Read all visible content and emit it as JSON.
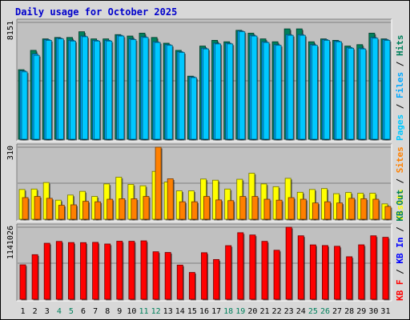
{
  "title": "Daily usage for October 2025",
  "colors": {
    "frame": "#d8d8d8",
    "panel": "#c0c0c0",
    "title": "#0000cc",
    "hits": "#00805c",
    "files": "#00a8ff",
    "pages": "#00c8ff",
    "visits": "#ffff00",
    "sites": "#ff8000",
    "kbytes": "#ff0000",
    "kb_in": "#0000ff",
    "kb_out": "#00805c",
    "weekday_label": "#000000",
    "weekend_label": "#00805c"
  },
  "chart_data": {
    "type": "bar",
    "title": "Daily usage for October 2025",
    "x": [
      "1",
      "2",
      "3",
      "4",
      "5",
      "6",
      "7",
      "8",
      "9",
      "10",
      "11",
      "12",
      "13",
      "14",
      "15",
      "16",
      "17",
      "18",
      "19",
      "20",
      "21",
      "22",
      "23",
      "24",
      "25",
      "26",
      "27",
      "28",
      "29",
      "30",
      "31"
    ],
    "weekend_days": [
      "4",
      "5",
      "11",
      "12",
      "18",
      "19",
      "25",
      "26"
    ],
    "panels": [
      {
        "name": "top",
        "y_max_label": "8151",
        "ylim": [
          0,
          8151
        ],
        "legend": [
          "Pages",
          "/",
          "Files",
          "/",
          "Hits"
        ],
        "series": [
          {
            "name": "Hits",
            "values": [
              4850,
              6200,
              7000,
              7100,
              7100,
              7500,
              7000,
              7000,
              7300,
              7200,
              7400,
              7100,
              6700,
              6200,
              4400,
              6500,
              6900,
              6800,
              7600,
              7400,
              7000,
              6800,
              7700,
              7700,
              6800,
              7000,
              6900,
              6500,
              6600,
              7400,
              7000
            ]
          },
          {
            "name": "Files",
            "values": [
              4770,
              5950,
              6950,
              7050,
              6900,
              7200,
              6900,
              6900,
              7250,
              7000,
              7150,
              6800,
              6600,
              6100,
              4350,
              6350,
              6700,
              6700,
              7550,
              7250,
              6800,
              6600,
              7300,
              7300,
              6600,
              6950,
              6850,
              6400,
              6350,
              7100,
              6950
            ]
          },
          {
            "name": "Pages",
            "values": [
              4700,
              5850,
              6900,
              7000,
              6850,
              7150,
              6850,
              6850,
              7200,
              6950,
              7100,
              6750,
              6550,
              6050,
              4300,
              6300,
              6650,
              6650,
              7500,
              7200,
              6750,
              6550,
              7250,
              7250,
              6550,
              6900,
              6800,
              6350,
              6300,
              7050,
              6900
            ]
          }
        ]
      },
      {
        "name": "middle",
        "y_max_label": "310",
        "ylim": [
          0,
          310
        ],
        "legend": [
          "Visits",
          "/",
          "Sites"
        ],
        "series": [
          {
            "name": "Visits",
            "values": [
              128,
              130,
              158,
              82,
              104,
              120,
              98,
              152,
              181,
              150,
              144,
              206,
              160,
              122,
              122,
              173,
              168,
              130,
              172,
              198,
              152,
              140,
              176,
              116,
              128,
              132,
              110,
              115,
              112,
              112,
              66
            ]
          },
          {
            "name": "Sites",
            "values": [
              93,
              98,
              90,
              60,
              62,
              77,
              75,
              86,
              88,
              88,
              98,
              310,
              174,
              75,
              75,
              98,
              83,
              80,
              98,
              98,
              86,
              82,
              93,
              86,
              70,
              75,
              70,
              90,
              88,
              86,
              55
            ]
          }
        ]
      },
      {
        "name": "bottom",
        "y_max_label": "1141026",
        "ylim": [
          0,
          1141026
        ],
        "legend": [
          "KB F",
          "/",
          "KB In",
          "/",
          "KB Out"
        ],
        "series": [
          {
            "name": "KB F",
            "values": [
              545000,
              706000,
              887000,
              916000,
              898000,
              897000,
              901000,
              875000,
              919000,
              918000,
              925000,
              752000,
              741000,
              541000,
              424000,
              737000,
              629000,
              849000,
              1054000,
              1018000,
              917000,
              776000,
              1141026,
              1005000,
              861000,
              851000,
              839000,
              673000,
              862000,
              1005000,
              981000
            ]
          }
        ]
      }
    ]
  }
}
